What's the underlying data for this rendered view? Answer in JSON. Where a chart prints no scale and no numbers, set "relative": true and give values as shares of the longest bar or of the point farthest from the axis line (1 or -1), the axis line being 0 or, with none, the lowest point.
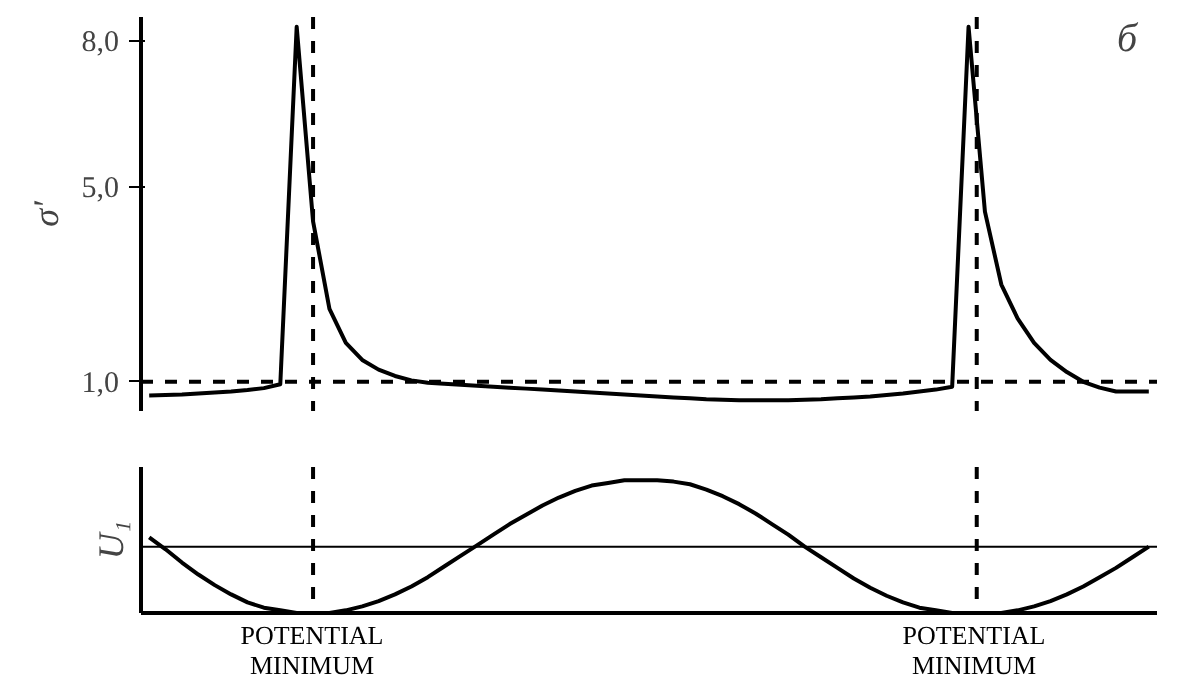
{
  "chart_data": [
    {
      "type": "line",
      "ylabel": "σ'",
      "annotations": [
        "б"
      ],
      "categories": [
        null,
        null,
        null,
        null,
        null,
        null,
        null,
        null,
        null,
        null,
        null,
        null,
        null,
        null,
        null,
        null,
        null,
        null,
        null,
        null,
        null,
        null,
        null,
        null,
        null,
        null,
        null,
        null,
        null,
        null,
        null,
        null,
        null,
        null,
        null,
        null,
        null,
        null,
        null,
        null,
        null,
        null,
        null,
        null,
        null,
        null,
        null,
        null,
        null,
        null,
        null,
        null,
        null,
        null,
        null,
        null,
        null,
        null,
        null,
        null,
        null,
        null
      ],
      "ylim": [
        0.4,
        8.5
      ],
      "yticks": [
        {
          "value": 1,
          "label": "1,0"
        },
        {
          "value": 5,
          "label": "5,0"
        },
        {
          "value": 8,
          "label": "8,0"
        }
      ],
      "tick_labels": "y",
      "line_style": "solid",
      "series": [
        {
          "color": "#000000",
          "values": [
            0.72,
            0.73,
            0.74,
            0.76,
            0.78,
            0.8,
            0.83,
            0.87,
            0.95,
            8.3,
            4.3,
            2.5,
            1.8,
            1.45,
            1.25,
            1.12,
            1.03,
            0.98,
            0.96,
            0.94,
            0.92,
            0.9,
            0.88,
            0.86,
            0.84,
            0.82,
            0.8,
            0.78,
            0.76,
            0.74,
            0.72,
            0.7,
            0.68,
            0.66,
            0.64,
            0.63,
            0.62,
            0.62,
            0.62,
            0.62,
            0.63,
            0.64,
            0.66,
            0.68,
            0.7,
            0.73,
            0.76,
            0.8,
            0.84,
            0.9,
            8.3,
            4.5,
            3.0,
            2.3,
            1.8,
            1.45,
            1.2,
            1.0,
            0.88,
            0.8,
            0.8,
            0.8
          ]
        }
      ],
      "ref_lines": [
        {
          "axis": "y",
          "value": 1.0,
          "line_style": "dashed",
          "color": "#000000"
        }
      ]
    },
    {
      "type": "line",
      "ylabel": "U₁",
      "relative": true,
      "categories": [
        null,
        null,
        null,
        null,
        null,
        null,
        null,
        null,
        null,
        null,
        null,
        null,
        null,
        null,
        null,
        null,
        null,
        null,
        null,
        null,
        null,
        null,
        null,
        null,
        null,
        null,
        null,
        null,
        null,
        null,
        null,
        null,
        null,
        null,
        null,
        null,
        null,
        null,
        null,
        null,
        null,
        null,
        null,
        null,
        null,
        null,
        null,
        null,
        null,
        null,
        null,
        null,
        null,
        null,
        null,
        null,
        null,
        null,
        null,
        null,
        null,
        null
      ],
      "tick_labels": false,
      "line_style": "solid",
      "annotations": [
        "POTENTIAL\nMINIMUM",
        "POTENTIAL\nMINIMUM"
      ],
      "series": [
        {
          "color": "#000000",
          "values": [
            0.57,
            0.48,
            0.38,
            0.29,
            0.21,
            0.14,
            0.08,
            0.04,
            0.02,
            0.0,
            0.0,
            0.0,
            0.02,
            0.05,
            0.09,
            0.14,
            0.2,
            0.27,
            0.35,
            0.43,
            0.51,
            0.59,
            0.67,
            0.74,
            0.81,
            0.87,
            0.92,
            0.96,
            0.98,
            1.0,
            1.0,
            1.0,
            0.99,
            0.97,
            0.93,
            0.88,
            0.82,
            0.75,
            0.67,
            0.59,
            0.5,
            0.42,
            0.34,
            0.26,
            0.19,
            0.13,
            0.08,
            0.04,
            0.02,
            0.0,
            0.0,
            0.0,
            0.0,
            0.02,
            0.05,
            0.09,
            0.14,
            0.2,
            0.27,
            0.34,
            0.42,
            0.5
          ]
        }
      ],
      "ref_lines": [
        {
          "axis": "y",
          "value": 0.5,
          "line_style": "solid",
          "color": "#000000"
        }
      ]
    }
  ]
}
